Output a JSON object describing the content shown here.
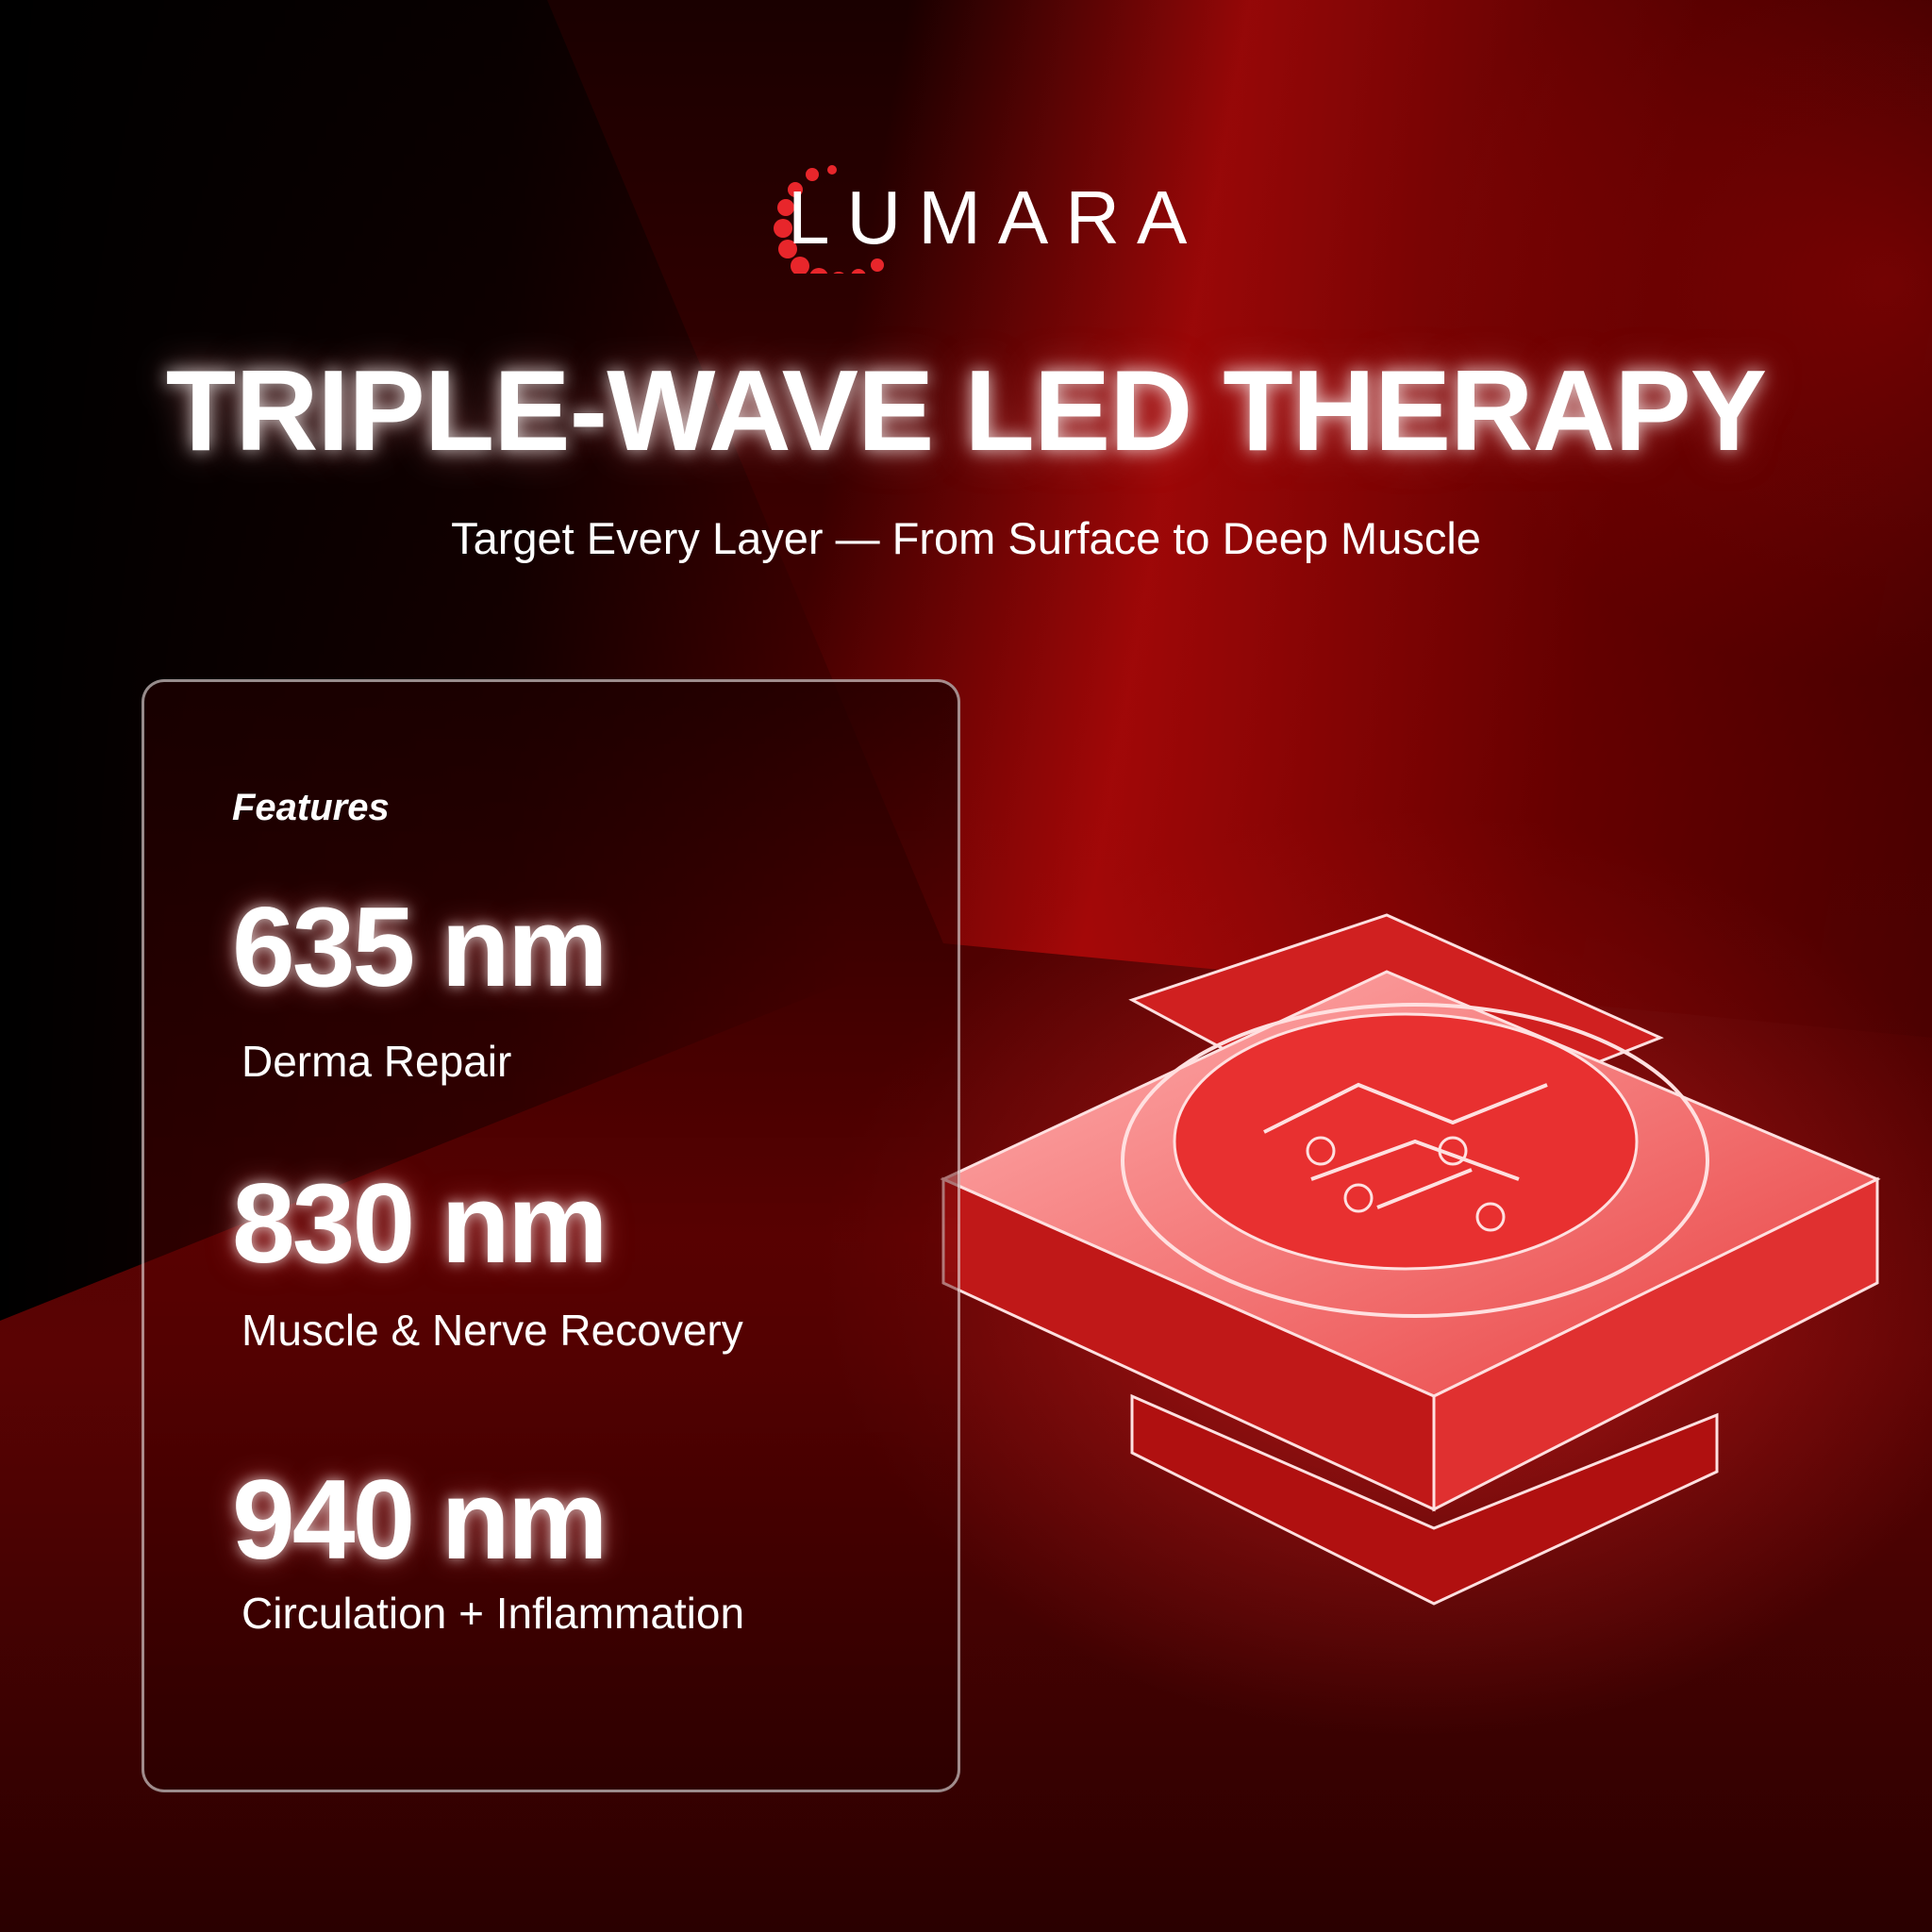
{
  "brand": {
    "name": "LUMARA",
    "accent": "#e8262b"
  },
  "header": {
    "title": "TRIPLE-WAVE LED THERAPY",
    "subtitle": "Target Every Layer — From Surface to Deep Muscle"
  },
  "features": {
    "label": "Features",
    "items": [
      {
        "wavelength": "635 nm",
        "description": "Derma Repair"
      },
      {
        "wavelength": "830 nm",
        "description": "Muscle & Nerve Recovery"
      },
      {
        "wavelength": "940 nm",
        "description": "Circulation + Inflammation"
      }
    ]
  }
}
